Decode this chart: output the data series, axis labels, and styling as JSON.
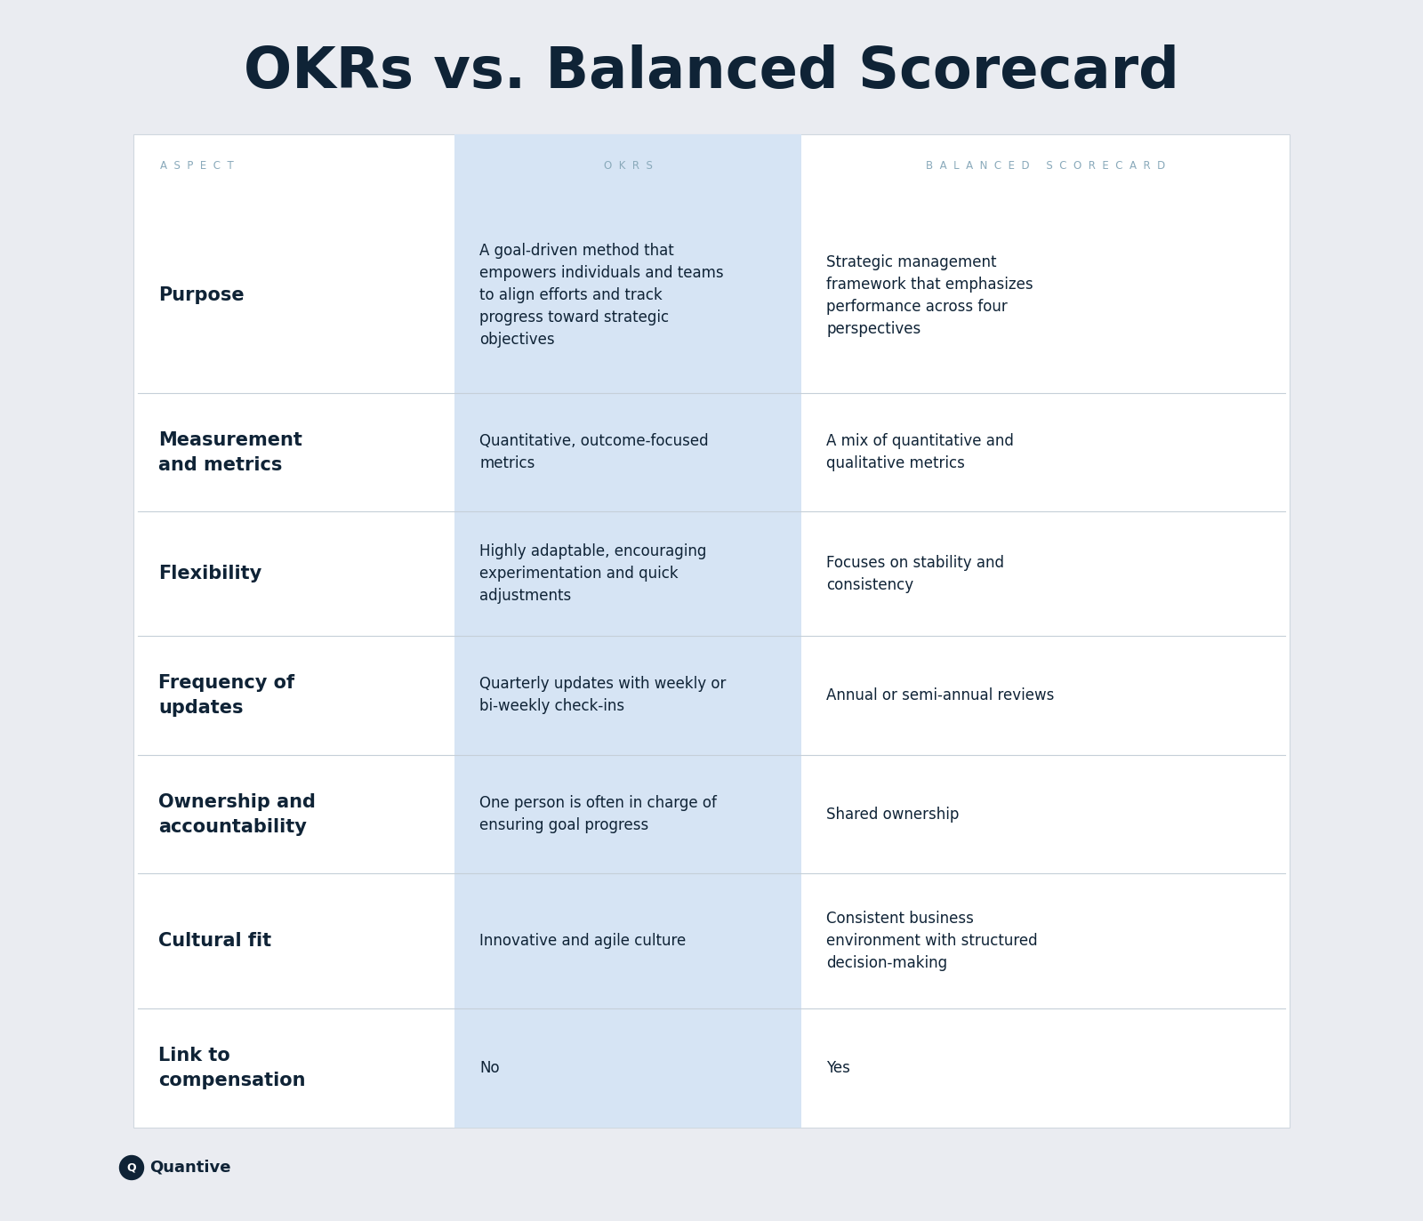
{
  "title": "OKRs vs. Balanced Scorecard",
  "background_color": "#eaecf1",
  "card_bg": "#ffffff",
  "okrs_col_bg": "#d6e4f4",
  "header_label_color": "#8aaabb",
  "title_color": "#0f2336",
  "aspect_col_header": "ASPECT",
  "okrs_col_header": "OKRS",
  "bsc_col_header": "BALANCED SCORECARD",
  "divider_color": "#c5cfd8",
  "rows": [
    {
      "aspect": "Purpose",
      "okrs": "A goal-driven method that\nempowers individuals and teams\nto align efforts and track\nprogress toward strategic\nobjectives",
      "bsc": "Strategic management\nframework that emphasizes\nperformance across four\nperspectives"
    },
    {
      "aspect": "Measurement\nand metrics",
      "okrs": "Quantitative, outcome-focused\nmetrics",
      "bsc": "A mix of quantitative and\nqualitative metrics"
    },
    {
      "aspect": "Flexibility",
      "okrs": "Highly adaptable, encouraging\nexperimentation and quick\nadjustments",
      "bsc": "Focuses on stability and\nconsistency"
    },
    {
      "aspect": "Frequency of\nupdates",
      "okrs": "Quarterly updates with weekly or\nbi-weekly check-ins",
      "bsc": "Annual or semi-annual reviews"
    },
    {
      "aspect": "Ownership and\naccountability",
      "okrs": "One person is often in charge of\nensuring goal progress",
      "bsc": "Shared ownership"
    },
    {
      "aspect": "Cultural fit",
      "okrs": "Innovative and agile culture",
      "bsc": "Consistent business\nenvironment with structured\ndecision-making"
    },
    {
      "aspect": "Link to\ncompensation",
      "okrs": "No",
      "bsc": "Yes"
    }
  ],
  "logo_text": "Quantive",
  "logo_color": "#0f2336",
  "row_weights": [
    1.8,
    1.1,
    1.15,
    1.1,
    1.1,
    1.25,
    1.1
  ]
}
